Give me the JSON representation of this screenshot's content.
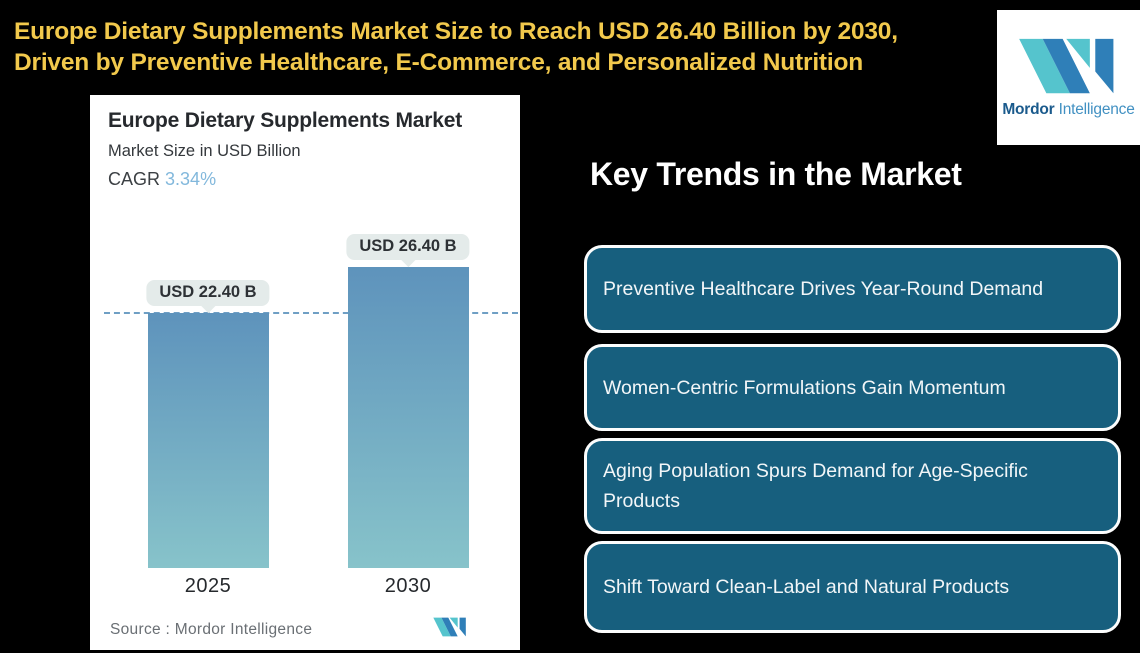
{
  "page": {
    "background": "#000000"
  },
  "header": {
    "title_line1": "Europe Dietary Supplements Market Size to Reach USD 26.40 Billion by 2030,",
    "title_line2": "Driven by Preventive Healthcare, E-Commerce, and Personalized Nutrition",
    "title_color": "#f2c94c"
  },
  "brand_logo": {
    "word_bold": "Mordor",
    "word_light": "Intelligence",
    "teal": "#55c4cd",
    "blue": "#2f7fb8",
    "word_bold_color": "#1a5a8c",
    "word_light_color": "#4190c2"
  },
  "chart_card": {
    "title": "Europe Dietary Supplements Market",
    "subtitle": "Market Size in USD Billion",
    "cagr_label": "CAGR",
    "cagr_value": "3.34%",
    "cagr_value_color": "#82b8dc",
    "source_text": "Source :  Mordor Intelligence"
  },
  "chart_data": {
    "type": "bar",
    "title": "Europe Dietary Supplements Market",
    "subtitle": "Market Size in USD Billion",
    "cagr": "3.34%",
    "categories": [
      "2025",
      "2030"
    ],
    "values": [
      22.4,
      26.4
    ],
    "bar_labels": [
      "USD 22.40 B",
      "USD 26.40 B"
    ],
    "unit": "USD Billion",
    "ylim": [
      0,
      26.4
    ],
    "reference_line_value": 22.4,
    "reference_line_style": "dashed",
    "reference_line_color": "#6f9fc4",
    "bar_color_top": "#5e93bc",
    "bar_color_bottom": "#87c3ca",
    "grid": false,
    "legend": "none"
  },
  "trends": {
    "heading": "Key Trends in the Market",
    "box_fill": "#175f7e",
    "box_border": "#fcfdfd",
    "items": [
      "Preventive Healthcare Drives Year-Round Demand",
      "Women-Centric Formulations Gain Momentum",
      "Aging Population Spurs Demand for Age-Specific Products",
      "Shift Toward Clean-Label and Natural Products"
    ]
  }
}
